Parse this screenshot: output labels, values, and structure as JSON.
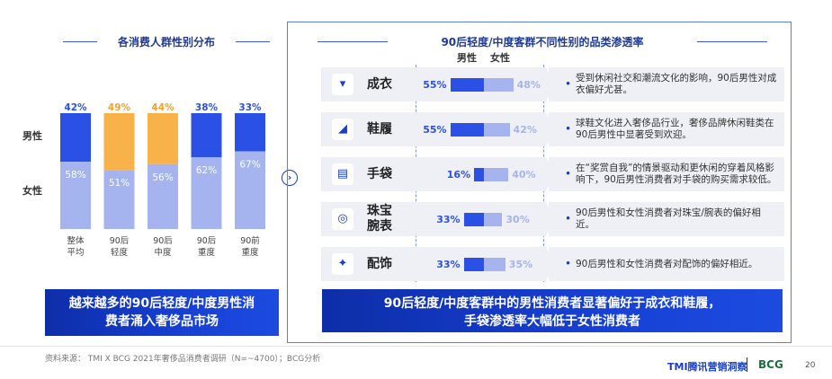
{
  "left": {
    "title": "各消费人群性别分布",
    "caption_line1": "越来越多的90后轻度/中度男性消",
    "caption_line2": "费者涌入奢侈品市场"
  },
  "right": {
    "title": "90后轻度/中度客群不同性别的品类渗透率",
    "legend_male": "男性",
    "legend_female": "女性",
    "caption_line1": "90后轻度/中度客群中的男性消费者显著偏好于成衣和鞋履，",
    "caption_line2": "手袋渗透率大幅低于女性消费者"
  },
  "chart_data": [
    {
      "type": "bar",
      "stacked": true,
      "title": "各消费人群性别分布",
      "categories": [
        [
          "整体",
          "平均"
        ],
        [
          "90后",
          "轻度"
        ],
        [
          "90后",
          "中度"
        ],
        [
          "90后",
          "重度"
        ],
        [
          "90前",
          "重度"
        ]
      ],
      "series": [
        {
          "name": "男性",
          "values": [
            42,
            49,
            44,
            38,
            33
          ],
          "colors": [
            "#2b50e6",
            "#f7b24a",
            "#f7b24a",
            "#2b50e6",
            "#2b50e6"
          ]
        },
        {
          "name": "女性",
          "values": [
            58,
            51,
            56,
            62,
            67
          ],
          "colors": [
            "#a5b4ee",
            "#a5b4ee",
            "#a5b4ee",
            "#a5b4ee",
            "#a5b4ee"
          ]
        }
      ],
      "unit": "%",
      "ylim": [
        0,
        100
      ]
    },
    {
      "type": "bar",
      "orientation": "diverging",
      "title": "90后轻度/中度客群不同性别的品类渗透率",
      "categories": [
        "成衣",
        "鞋履",
        "手袋",
        "珠宝腕表",
        "配饰"
      ],
      "category_lines": [
        [
          "成衣"
        ],
        [
          "鞋履"
        ],
        [
          "手袋"
        ],
        [
          "珠宝",
          "腕表"
        ],
        [
          "配饰"
        ]
      ],
      "icons": [
        "shirt-icon",
        "shoe-icon",
        "handbag-icon",
        "ring-icon",
        "accessory-icon"
      ],
      "icon_glyphs": [
        "▾",
        "◢",
        "▤",
        "◎",
        "✦"
      ],
      "series": [
        {
          "name": "男性",
          "values": [
            55,
            55,
            16,
            33,
            33
          ],
          "color": "#2b50e6"
        },
        {
          "name": "女性",
          "values": [
            48,
            42,
            40,
            30,
            35
          ],
          "color": "#a5b4ee"
        }
      ],
      "unit": "%",
      "notes": [
        "受到休闲社交和潮流文化的影响，90后男性对成衣偏好尤甚。",
        "球鞋文化进入奢侈品行业，奢侈品牌休闲鞋类在90后男性中显著受到欢迎。",
        "在“奖赏自我”的情景驱动和更休闲的穿着风格影响下，90后男性消费者对手袋的购买需求较低。",
        "90后男性和女性消费者对珠宝/腕表的偏好相近。",
        "90后男性和女性消费者对配饰的偏好相近。"
      ]
    }
  ],
  "footer": {
    "source": "资料来源： TMI X BCG 2021年奢侈品消费者调研（N=~4700）；BCG分析",
    "logo_tmi": "TMI腾讯营销洞察",
    "logo_bcg": "BCG",
    "page": "20"
  }
}
